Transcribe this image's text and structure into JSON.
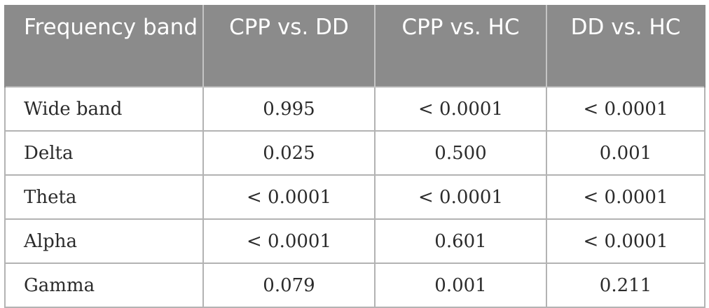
{
  "table": {
    "headers": [
      "Frequency band",
      "CPP vs. DD",
      "CPP vs. HC",
      "DD vs. HC"
    ],
    "rows": [
      {
        "band": "Wide band",
        "cpp_dd": "0.995",
        "cpp_hc": "< 0.0001",
        "dd_hc": "< 0.0001"
      },
      {
        "band": "Delta",
        "cpp_dd": "0.025",
        "cpp_hc": "0.500",
        "dd_hc": "0.001"
      },
      {
        "band": "Theta",
        "cpp_dd": "< 0.0001",
        "cpp_hc": "< 0.0001",
        "dd_hc": "< 0.0001"
      },
      {
        "band": "Alpha",
        "cpp_dd": "< 0.0001",
        "cpp_hc": "0.601",
        "dd_hc": "< 0.0001"
      },
      {
        "band": "Gamma",
        "cpp_dd": "0.079",
        "cpp_hc": "0.001",
        "dd_hc": "0.211"
      }
    ]
  },
  "colors": {
    "header_background": "#8b8b8b",
    "header_text": "#ffffff",
    "grid_lines": "#b3b3b3",
    "body_text": "#2b2b2b"
  }
}
